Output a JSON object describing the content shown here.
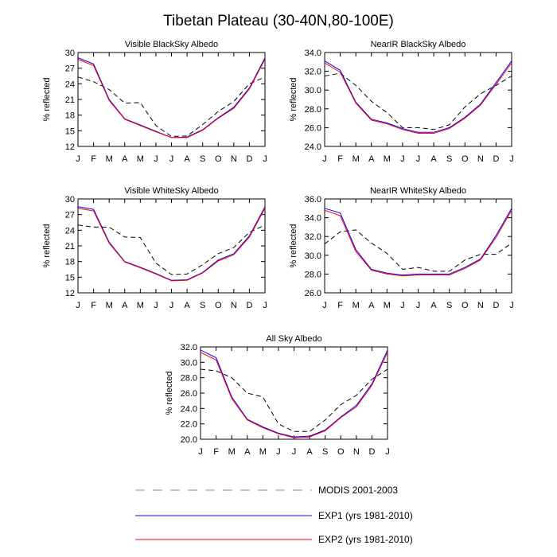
{
  "figure_title": "Tibetan Plateau (30-40N,80-100E)",
  "legend": {
    "items": [
      {
        "label": "MODIS 2001-2003",
        "color": "#000000",
        "dashed": true
      },
      {
        "label": "EXP1 (yrs 1981-2010)",
        "color": "#0000ff",
        "dashed": false
      },
      {
        "label": "EXP2 (yrs 1981-2010)",
        "color": "#ff0000",
        "dashed": false
      }
    ]
  },
  "colors": {
    "modis": "#000000",
    "exp1": "#0000ff",
    "exp2": "#ff0000"
  },
  "chart_data": [
    {
      "type": "line",
      "title": "Visible BlackSky Albedo",
      "xlabel": "",
      "ylabel": "% reflected",
      "categories": [
        "J",
        "F",
        "M",
        "A",
        "M",
        "J",
        "J",
        "A",
        "S",
        "O",
        "N",
        "D",
        "J"
      ],
      "ylim": [
        12,
        30
      ],
      "yticks": [
        "12",
        "15",
        "18",
        "21",
        "24",
        "27",
        "30"
      ],
      "grid": false,
      "series": [
        {
          "key": "modis",
          "values": [
            25.3,
            24.4,
            22.9,
            20.3,
            20.4,
            16.0,
            13.9,
            14.0,
            16.2,
            18.7,
            20.6,
            24.0,
            25.3
          ]
        },
        {
          "key": "exp1",
          "values": [
            29.0,
            27.8,
            21.0,
            17.3,
            16.1,
            14.9,
            13.7,
            13.8,
            15.2,
            17.5,
            19.5,
            23.2,
            29.0
          ]
        },
        {
          "key": "exp2",
          "values": [
            28.7,
            27.5,
            20.8,
            17.2,
            16.0,
            14.8,
            13.7,
            13.7,
            15.1,
            17.4,
            19.3,
            23.0,
            28.7
          ]
        }
      ]
    },
    {
      "type": "line",
      "title": "NearIR BlackSky Albedo",
      "xlabel": "",
      "ylabel": "% reflected",
      "categories": [
        "J",
        "F",
        "M",
        "A",
        "M",
        "J",
        "J",
        "A",
        "S",
        "O",
        "N",
        "D",
        "J"
      ],
      "ylim": [
        24,
        34
      ],
      "yticks": [
        "24.0",
        "26.0",
        "28.0",
        "30.0",
        "32.0",
        "34.0"
      ],
      "grid": false,
      "series": [
        {
          "key": "modis",
          "values": [
            31.5,
            31.8,
            30.5,
            28.8,
            27.6,
            26.0,
            26.0,
            25.8,
            26.3,
            28.2,
            29.6,
            30.5,
            31.5
          ]
        },
        {
          "key": "exp1",
          "values": [
            33.1,
            32.1,
            28.7,
            26.9,
            26.5,
            25.9,
            25.5,
            25.5,
            26.0,
            27.1,
            28.5,
            30.8,
            33.1
          ]
        },
        {
          "key": "exp2",
          "values": [
            32.9,
            31.9,
            28.6,
            26.8,
            26.4,
            25.8,
            25.4,
            25.4,
            25.9,
            27.0,
            28.4,
            30.6,
            32.9
          ]
        }
      ]
    },
    {
      "type": "line",
      "title": "Visible WhiteSky Albedo",
      "xlabel": "",
      "ylabel": "% reflected",
      "categories": [
        "J",
        "F",
        "M",
        "A",
        "M",
        "J",
        "J",
        "A",
        "S",
        "O",
        "N",
        "D",
        "J"
      ],
      "ylim": [
        12,
        30
      ],
      "yticks": [
        "12",
        "15",
        "18",
        "21",
        "24",
        "27",
        "30"
      ],
      "grid": false,
      "series": [
        {
          "key": "modis",
          "values": [
            25.0,
            24.6,
            24.6,
            22.7,
            22.6,
            17.7,
            15.5,
            15.6,
            17.4,
            19.5,
            20.7,
            23.6,
            25.0
          ]
        },
        {
          "key": "exp1",
          "values": [
            28.5,
            28.0,
            21.7,
            18.0,
            16.9,
            15.7,
            14.4,
            14.5,
            15.9,
            18.3,
            19.5,
            22.9,
            28.5
          ]
        },
        {
          "key": "exp2",
          "values": [
            28.2,
            27.7,
            21.5,
            17.9,
            16.8,
            15.6,
            14.3,
            14.4,
            15.8,
            18.1,
            19.3,
            22.7,
            28.2
          ]
        }
      ]
    },
    {
      "type": "line",
      "title": "NearIR WhiteSky Albedo",
      "xlabel": "",
      "ylabel": "% reflected",
      "categories": [
        "J",
        "F",
        "M",
        "A",
        "M",
        "J",
        "J",
        "A",
        "S",
        "O",
        "N",
        "D",
        "J"
      ],
      "ylim": [
        26,
        36
      ],
      "yticks": [
        "26.0",
        "28.0",
        "30.0",
        "32.0",
        "34.0",
        "36.0"
      ],
      "grid": false,
      "series": [
        {
          "key": "modis",
          "values": [
            31.2,
            32.5,
            32.7,
            31.3,
            30.2,
            28.5,
            28.7,
            28.3,
            28.3,
            29.5,
            30.1,
            30.1,
            31.3
          ]
        },
        {
          "key": "exp1",
          "values": [
            35.0,
            34.5,
            30.6,
            28.5,
            28.1,
            27.9,
            28.0,
            28.0,
            28.0,
            28.7,
            29.6,
            32.1,
            35.0
          ]
        },
        {
          "key": "exp2",
          "values": [
            34.8,
            34.2,
            30.4,
            28.4,
            28.0,
            27.8,
            27.9,
            27.9,
            27.9,
            28.6,
            29.5,
            31.9,
            34.8
          ]
        }
      ]
    },
    {
      "type": "line",
      "title": "All Sky Albedo",
      "xlabel": "",
      "ylabel": "% reflected",
      "categories": [
        "J",
        "F",
        "M",
        "A",
        "M",
        "J",
        "J",
        "A",
        "S",
        "O",
        "N",
        "D",
        "J"
      ],
      "ylim": [
        20,
        32
      ],
      "yticks": [
        "20.0",
        "22.0",
        "24.0",
        "26.0",
        "28.0",
        "30.0",
        "32.0"
      ],
      "grid": false,
      "series": [
        {
          "key": "modis",
          "values": [
            29.1,
            28.9,
            28.0,
            26.0,
            25.5,
            22.0,
            21.0,
            21.0,
            22.5,
            24.5,
            25.7,
            27.8,
            29.1
          ]
        },
        {
          "key": "exp1",
          "values": [
            31.6,
            30.6,
            25.5,
            22.6,
            21.6,
            20.8,
            20.3,
            20.4,
            21.2,
            22.9,
            24.4,
            27.2,
            31.6
          ]
        },
        {
          "key": "exp2",
          "values": [
            31.3,
            30.3,
            25.3,
            22.5,
            21.5,
            20.7,
            20.2,
            20.3,
            21.1,
            22.8,
            24.2,
            27.0,
            31.3
          ]
        }
      ]
    }
  ]
}
